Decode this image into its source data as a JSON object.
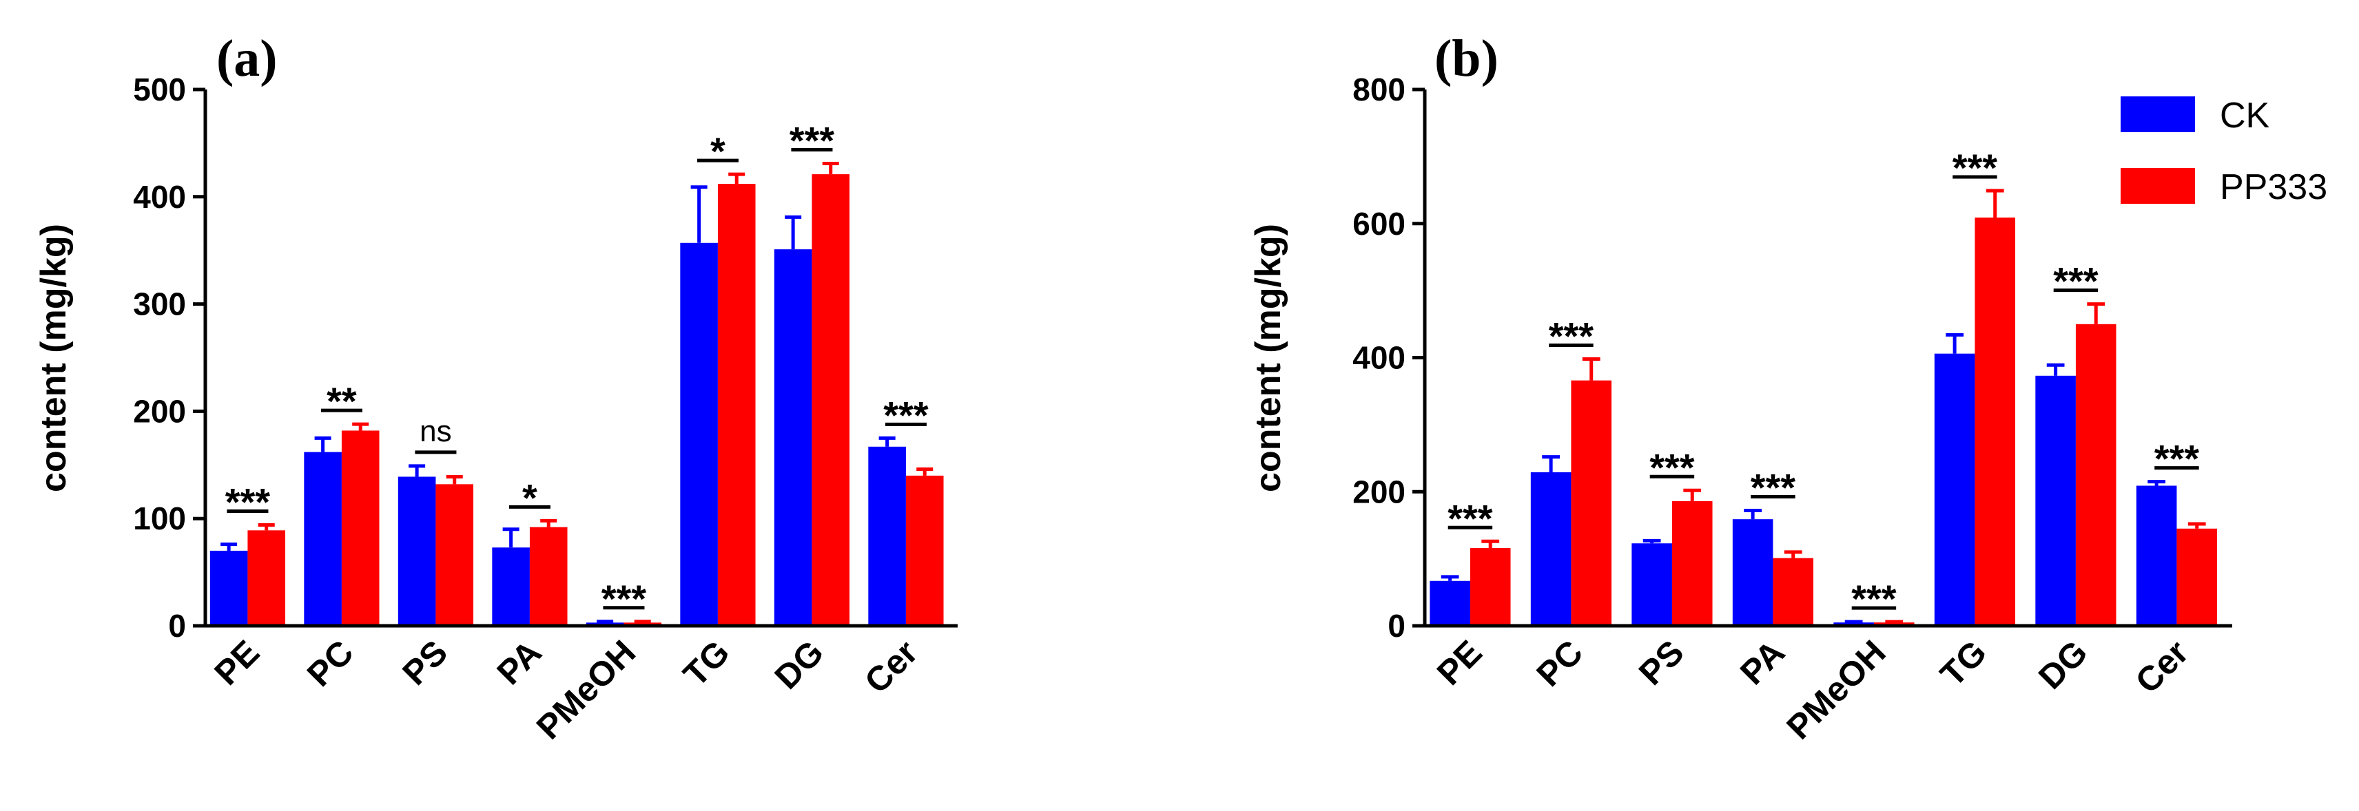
{
  "chart_data": [
    {
      "type": "bar",
      "panel": "(a)",
      "ylabel": "content (mg/kg)",
      "ylim": [
        0,
        500
      ],
      "yticks": [
        0,
        100,
        200,
        300,
        400,
        500
      ],
      "categories": [
        "PE",
        "PC",
        "PS",
        "PA",
        "PMeOH",
        "TG",
        "DG",
        "Cer"
      ],
      "series": [
        {
          "name": "CK",
          "color": "#0000ff",
          "values": [
            70,
            162,
            139,
            73,
            3,
            357,
            351,
            167
          ],
          "errors": [
            6,
            13,
            10,
            17,
            1,
            52,
            30,
            8
          ]
        },
        {
          "name": "PP333",
          "color": "#ff0000",
          "values": [
            89,
            182,
            132,
            92,
            3,
            412,
            421,
            140
          ],
          "errors": [
            5,
            6,
            7,
            6,
            1,
            9,
            10,
            6
          ]
        }
      ],
      "significance": [
        "***",
        "**",
        "ns",
        "*",
        "***",
        "*",
        "***",
        "***"
      ]
    },
    {
      "type": "bar",
      "panel": "(b)",
      "ylabel": "content (mg/kg)",
      "ylim": [
        0,
        800
      ],
      "yticks": [
        0,
        200,
        400,
        600,
        800
      ],
      "categories": [
        "PE",
        "PC",
        "PS",
        "PA",
        "PMeOH",
        "TG",
        "DG",
        "Cer"
      ],
      "series": [
        {
          "name": "CK",
          "color": "#0000ff",
          "values": [
            67,
            229,
            123,
            159,
            5,
            406,
            373,
            209
          ],
          "errors": [
            6,
            23,
            4,
            13,
            1,
            28,
            16,
            6
          ]
        },
        {
          "name": "PP333",
          "color": "#ff0000",
          "values": [
            116,
            366,
            186,
            101,
            5,
            609,
            450,
            145
          ],
          "errors": [
            10,
            32,
            16,
            9,
            1,
            40,
            30,
            7
          ]
        }
      ],
      "significance": [
        "***",
        "***",
        "***",
        "***",
        "***",
        "***",
        "***",
        "***"
      ],
      "legend": {
        "position": "top-right",
        "entries": [
          "CK",
          "PP333"
        ]
      }
    }
  ]
}
